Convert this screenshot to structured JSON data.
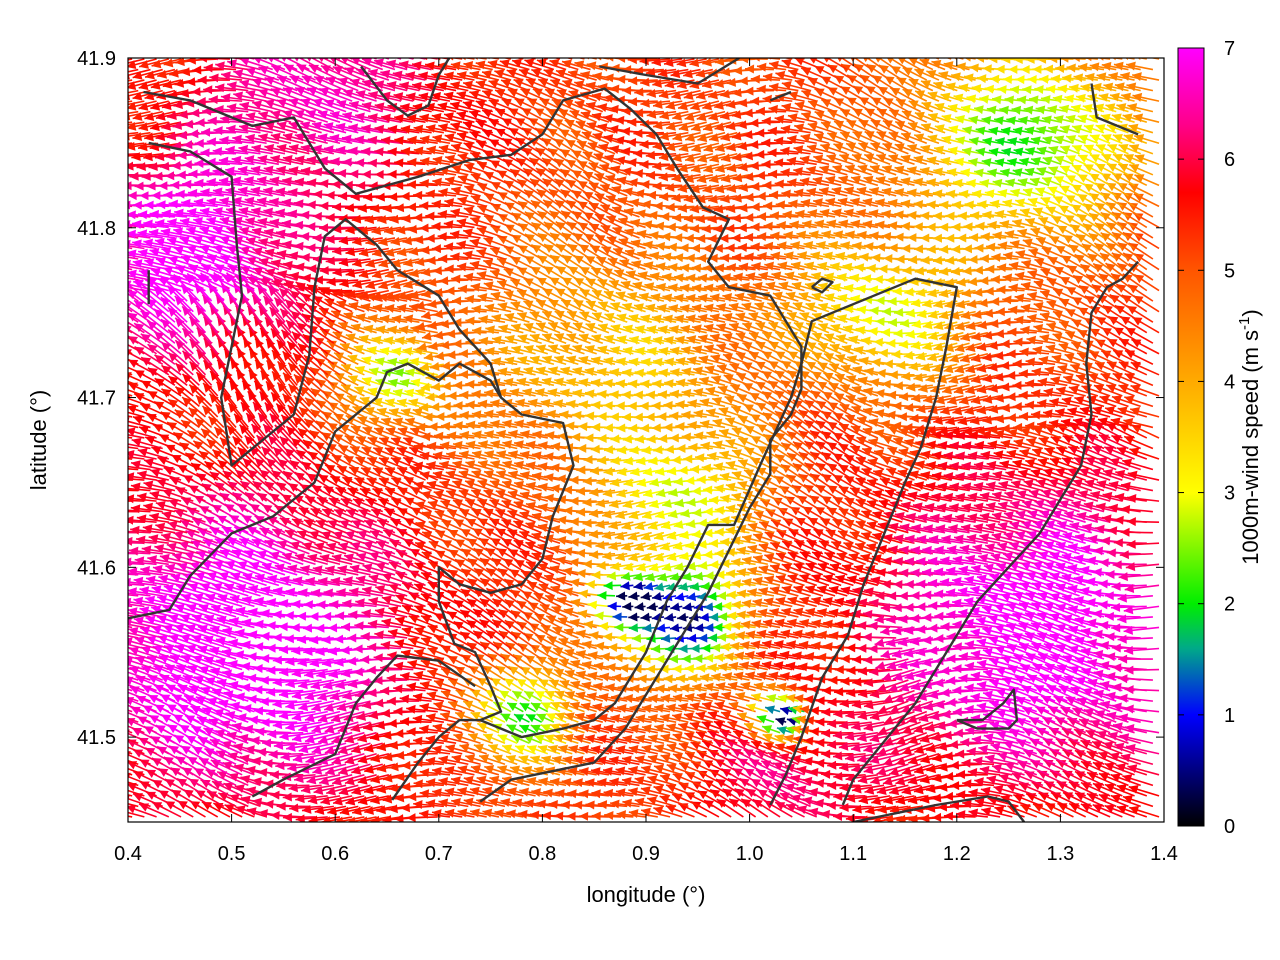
{
  "chart_data": {
    "type": "heatmap",
    "title": "",
    "xlabel": "longitude (°)",
    "ylabel": "latitude (°)",
    "colorbar_label_main": "1000m-wind speed (m s",
    "colorbar_label_sup": "-1",
    "colorbar_label_end": ")",
    "xlim": [
      0.4,
      1.4
    ],
    "ylim": [
      41.45,
      41.9
    ],
    "xticks": [
      {
        "value": 0.4,
        "label": "0.4"
      },
      {
        "value": 0.5,
        "label": "0.5"
      },
      {
        "value": 0.6,
        "label": "0.6"
      },
      {
        "value": 0.7,
        "label": "0.7"
      },
      {
        "value": 0.8,
        "label": "0.8"
      },
      {
        "value": 0.9,
        "label": "0.9"
      },
      {
        "value": 1.0,
        "label": "1.0"
      },
      {
        "value": 1.1,
        "label": "1.1"
      },
      {
        "value": 1.2,
        "label": "1.2"
      },
      {
        "value": 1.3,
        "label": "1.3"
      },
      {
        "value": 1.4,
        "label": "1.4"
      }
    ],
    "yticks": [
      {
        "value": 41.5,
        "label": "41.5"
      },
      {
        "value": 41.6,
        "label": "41.6"
      },
      {
        "value": 41.7,
        "label": "41.7"
      },
      {
        "value": 41.8,
        "label": "41.8"
      },
      {
        "value": 41.9,
        "label": "41.9"
      }
    ],
    "colorbar": {
      "range": [
        0,
        7
      ],
      "ticks": [
        {
          "value": 0,
          "label": "0"
        },
        {
          "value": 1,
          "label": "1"
        },
        {
          "value": 2,
          "label": "2"
        },
        {
          "value": 3,
          "label": "3"
        },
        {
          "value": 4,
          "label": "4"
        },
        {
          "value": 5,
          "label": "5"
        },
        {
          "value": 6,
          "label": "6"
        },
        {
          "value": 7,
          "label": "7"
        }
      ],
      "colors": [
        {
          "value": 0.0,
          "color": "#000000"
        },
        {
          "value": 1.0,
          "color": "#0000ff"
        },
        {
          "value": 1.6,
          "color": "#00aa88"
        },
        {
          "value": 2.0,
          "color": "#00ee00"
        },
        {
          "value": 3.0,
          "color": "#ffff00"
        },
        {
          "value": 4.0,
          "color": "#ffaa00"
        },
        {
          "value": 5.0,
          "color": "#ff5500"
        },
        {
          "value": 5.7,
          "color": "#ff0000"
        },
        {
          "value": 6.3,
          "color": "#ff0088"
        },
        {
          "value": 7.0,
          "color": "#ff00ff"
        }
      ]
    },
    "grid": false,
    "legend": "none",
    "contour_color": "#333333",
    "contours": [
      [
        [
          0.415,
          41.88
        ],
        [
          0.46,
          41.875
        ],
        [
          0.52,
          41.86
        ],
        [
          0.56,
          41.865
        ],
        [
          0.59,
          41.835
        ],
        [
          0.62,
          41.82
        ],
        [
          0.68,
          41.83
        ],
        [
          0.73,
          41.84
        ],
        [
          0.77,
          41.843
        ],
        [
          0.8,
          41.855
        ],
        [
          0.82,
          41.875
        ],
        [
          0.86,
          41.882
        ],
        [
          0.885,
          41.87
        ],
        [
          0.91,
          41.855
        ],
        [
          0.93,
          41.835
        ],
        [
          0.955,
          41.812
        ],
        [
          0.98,
          41.805
        ],
        [
          0.96,
          41.78
        ],
        [
          0.98,
          41.765
        ],
        [
          1.02,
          41.76
        ],
        [
          1.05,
          41.73
        ],
        [
          1.05,
          41.705
        ],
        [
          1.04,
          41.69
        ],
        [
          1.02,
          41.675
        ],
        [
          1.02,
          41.655
        ],
        [
          1.0,
          41.635
        ],
        [
          0.98,
          41.61
        ],
        [
          0.96,
          41.585
        ],
        [
          0.935,
          41.56
        ],
        [
          0.905,
          41.53
        ],
        [
          0.88,
          41.505
        ],
        [
          0.85,
          41.485
        ],
        [
          0.81,
          41.48
        ],
        [
          0.77,
          41.475
        ],
        [
          0.74,
          41.462
        ]
      ],
      [
        [
          0.625,
          41.895
        ],
        [
          0.65,
          41.875
        ],
        [
          0.67,
          41.866
        ],
        [
          0.69,
          41.872
        ],
        [
          0.7,
          41.89
        ],
        [
          0.71,
          41.9
        ]
      ],
      [
        [
          0.855,
          41.895
        ],
        [
          0.9,
          41.89
        ],
        [
          0.95,
          41.885
        ],
        [
          0.99,
          41.9
        ]
      ],
      [
        [
          1.02,
          41.875
        ],
        [
          1.04,
          41.88
        ]
      ],
      [
        [
          1.33,
          41.885
        ],
        [
          1.335,
          41.865
        ],
        [
          1.375,
          41.855
        ]
      ],
      [
        [
          0.42,
          41.85
        ],
        [
          0.46,
          41.845
        ],
        [
          0.5,
          41.83
        ],
        [
          0.505,
          41.79
        ],
        [
          0.51,
          41.76
        ],
        [
          0.5,
          41.73
        ],
        [
          0.49,
          41.7
        ],
        [
          0.5,
          41.66
        ],
        [
          0.53,
          41.675
        ],
        [
          0.56,
          41.69
        ],
        [
          0.575,
          41.725
        ],
        [
          0.58,
          41.765
        ],
        [
          0.59,
          41.795
        ],
        [
          0.61,
          41.805
        ],
        [
          0.64,
          41.79
        ],
        [
          0.66,
          41.775
        ],
        [
          0.7,
          41.76
        ],
        [
          0.72,
          41.74
        ],
        [
          0.75,
          41.72
        ],
        [
          0.76,
          41.7
        ],
        [
          0.78,
          41.69
        ],
        [
          0.82,
          41.685
        ],
        [
          0.83,
          41.66
        ],
        [
          0.81,
          41.63
        ],
        [
          0.8,
          41.605
        ],
        [
          0.78,
          41.59
        ],
        [
          0.75,
          41.585
        ],
        [
          0.72,
          41.59
        ],
        [
          0.7,
          41.6
        ],
        [
          0.7,
          41.58
        ],
        [
          0.715,
          41.555
        ],
        [
          0.735,
          41.55
        ],
        [
          0.75,
          41.53
        ],
        [
          0.76,
          41.515
        ],
        [
          0.74,
          41.51
        ]
      ],
      [
        [
          0.42,
          41.775
        ],
        [
          0.42,
          41.755
        ]
      ],
      [
        [
          0.4,
          41.57
        ],
        [
          0.44,
          41.575
        ],
        [
          0.46,
          41.595
        ],
        [
          0.5,
          41.62
        ],
        [
          0.54,
          41.63
        ],
        [
          0.58,
          41.65
        ],
        [
          0.6,
          41.68
        ],
        [
          0.64,
          41.7
        ],
        [
          0.65,
          41.715
        ],
        [
          0.67,
          41.72
        ],
        [
          0.7,
          41.71
        ],
        [
          0.72,
          41.72
        ],
        [
          0.75,
          41.71
        ],
        [
          0.76,
          41.7
        ]
      ],
      [
        [
          0.52,
          41.465
        ],
        [
          0.55,
          41.475
        ],
        [
          0.6,
          41.49
        ],
        [
          0.62,
          41.52
        ],
        [
          0.64,
          41.535
        ],
        [
          0.66,
          41.548
        ],
        [
          0.7,
          41.545
        ],
        [
          0.735,
          41.53
        ]
      ],
      [
        [
          0.655,
          41.463
        ],
        [
          0.68,
          41.485
        ],
        [
          0.7,
          41.5
        ],
        [
          0.72,
          41.51
        ],
        [
          0.74,
          41.51
        ],
        [
          0.78,
          41.5
        ],
        [
          0.82,
          41.505
        ],
        [
          0.85,
          41.51
        ],
        [
          0.87,
          41.52
        ],
        [
          0.9,
          41.55
        ],
        [
          0.92,
          41.58
        ],
        [
          0.94,
          41.6
        ],
        [
          0.96,
          41.625
        ],
        [
          0.985,
          41.625
        ],
        [
          1.01,
          41.66
        ],
        [
          1.025,
          41.68
        ],
        [
          1.04,
          41.7
        ],
        [
          1.05,
          41.72
        ],
        [
          1.06,
          41.745
        ],
        [
          1.08,
          41.75
        ],
        [
          1.12,
          41.76
        ],
        [
          1.16,
          41.77
        ],
        [
          1.2,
          41.765
        ],
        [
          1.19,
          41.73
        ],
        [
          1.18,
          41.7
        ],
        [
          1.165,
          41.67
        ],
        [
          1.15,
          41.65
        ],
        [
          1.13,
          41.62
        ],
        [
          1.11,
          41.59
        ],
        [
          1.095,
          41.56
        ],
        [
          1.07,
          41.535
        ],
        [
          1.05,
          41.5
        ],
        [
          1.035,
          41.478
        ],
        [
          1.02,
          41.46
        ]
      ],
      [
        [
          1.06,
          41.765
        ],
        [
          1.07,
          41.77
        ],
        [
          1.08,
          41.768
        ],
        [
          1.07,
          41.762
        ],
        [
          1.06,
          41.765
        ]
      ],
      [
        [
          1.375,
          41.78
        ],
        [
          1.36,
          41.77
        ],
        [
          1.345,
          41.765
        ],
        [
          1.33,
          41.75
        ],
        [
          1.325,
          41.72
        ],
        [
          1.33,
          41.69
        ],
        [
          1.32,
          41.66
        ],
        [
          1.3,
          41.64
        ],
        [
          1.28,
          41.62
        ],
        [
          1.25,
          41.6
        ],
        [
          1.22,
          41.58
        ],
        [
          1.2,
          41.56
        ],
        [
          1.18,
          41.54
        ],
        [
          1.16,
          41.52
        ],
        [
          1.14,
          41.505
        ],
        [
          1.12,
          41.49
        ],
        [
          1.1,
          41.475
        ],
        [
          1.09,
          41.46
        ]
      ],
      [
        [
          1.2,
          41.51
        ],
        [
          1.225,
          41.51
        ],
        [
          1.245,
          41.52
        ],
        [
          1.255,
          41.528
        ],
        [
          1.258,
          41.51
        ],
        [
          1.25,
          41.505
        ],
        [
          1.22,
          41.505
        ],
        [
          1.2,
          41.51
        ]
      ],
      [
        [
          1.1,
          41.45
        ],
        [
          1.18,
          41.46
        ],
        [
          1.23,
          41.465
        ],
        [
          1.25,
          41.462
        ],
        [
          1.265,
          41.45
        ]
      ]
    ]
  }
}
